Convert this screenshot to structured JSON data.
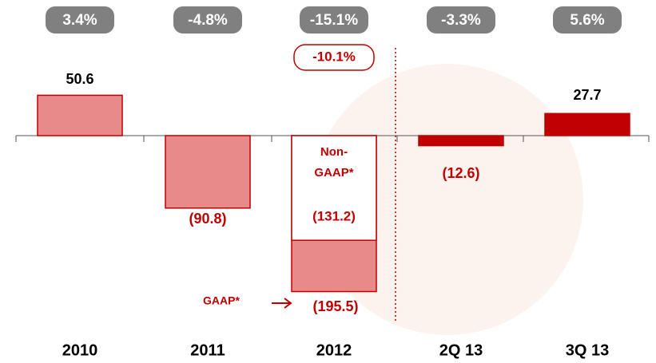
{
  "chart_data": {
    "type": "bar",
    "categories": [
      "2010",
      "2011",
      "2012",
      "2Q 13",
      "3Q 13"
    ],
    "series": [
      {
        "name": "GAAP*",
        "colors": [
          "#e88a8a",
          "#e88a8a",
          "#e88a8a",
          "#c00000",
          "#c00000"
        ],
        "values": [
          50.6,
          -90.8,
          -195.5,
          -12.6,
          27.7
        ],
        "value_labels": [
          "50.6",
          "(90.8)",
          "(195.5)",
          "(12.6)",
          "27.7"
        ]
      },
      {
        "name": "Non-GAAP*",
        "color": "#ffffff",
        "values": [
          null,
          null,
          -131.2,
          null,
          null
        ],
        "value_labels": [
          null,
          null,
          "(131.2)",
          null,
          null
        ]
      }
    ],
    "margin_labels": [
      "3.4%",
      "-4.8%",
      "-15.1%",
      "-3.3%",
      "5.6%"
    ],
    "non_gaap_margin_label": "-10.1%",
    "ylim": [
      -285,
      170
    ]
  }
}
